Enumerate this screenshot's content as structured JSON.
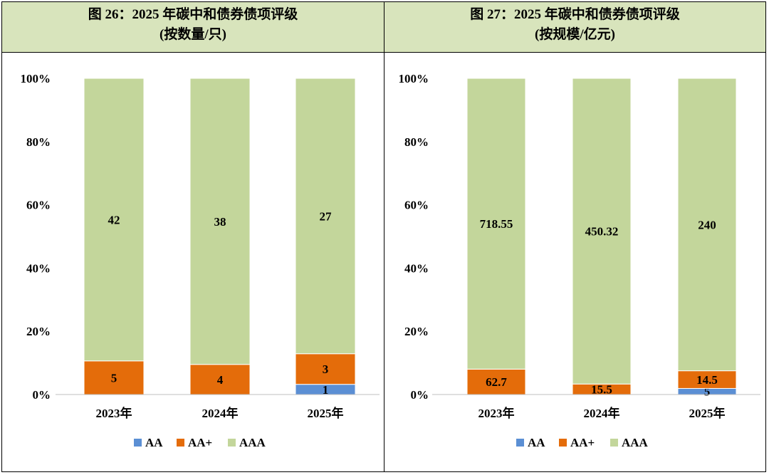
{
  "chart_data": [
    {
      "type": "bar",
      "stacked": "percent",
      "title": "图 26：2025 年碳中和债券债项评级",
      "subtitle": "(按数量/只)",
      "categories": [
        "2023年",
        "2024年",
        "2025年"
      ],
      "series": [
        {
          "name": "AA",
          "color": "#5b8fd4",
          "values": [
            0,
            0,
            1
          ],
          "labels": [
            "",
            "",
            "1"
          ]
        },
        {
          "name": "AA+",
          "color": "#e46c0a",
          "values": [
            5,
            4,
            3
          ],
          "labels": [
            "5",
            "4",
            "3"
          ]
        },
        {
          "name": "AAA",
          "color": "#c3d69b",
          "values": [
            42,
            38,
            27
          ],
          "labels": [
            "42",
            "38",
            "27"
          ]
        }
      ],
      "yticks": [
        "0%",
        "20%",
        "40%",
        "60%",
        "80%",
        "100%"
      ],
      "ylim": [
        0,
        100
      ],
      "legend": "bottom"
    },
    {
      "type": "bar",
      "stacked": "percent",
      "title": "图 27：2025 年碳中和债券债项评级",
      "subtitle": "(按规模/亿元)",
      "categories": [
        "2023年",
        "2024年",
        "2025年"
      ],
      "series": [
        {
          "name": "AA",
          "color": "#5b8fd4",
          "values": [
            0,
            0,
            5
          ],
          "labels": [
            "",
            "",
            "5"
          ]
        },
        {
          "name": "AA+",
          "color": "#e46c0a",
          "values": [
            62.7,
            15.5,
            14.5
          ],
          "labels": [
            "62.7",
            "15.5",
            "14.5"
          ]
        },
        {
          "name": "AAA",
          "color": "#c3d69b",
          "values": [
            718.55,
            450.32,
            240
          ],
          "labels": [
            "718.55",
            "450.32",
            "240"
          ]
        }
      ],
      "yticks": [
        "0%",
        "20%",
        "40%",
        "60%",
        "80%",
        "100%"
      ],
      "ylim": [
        0,
        100
      ],
      "legend": "bottom"
    }
  ]
}
